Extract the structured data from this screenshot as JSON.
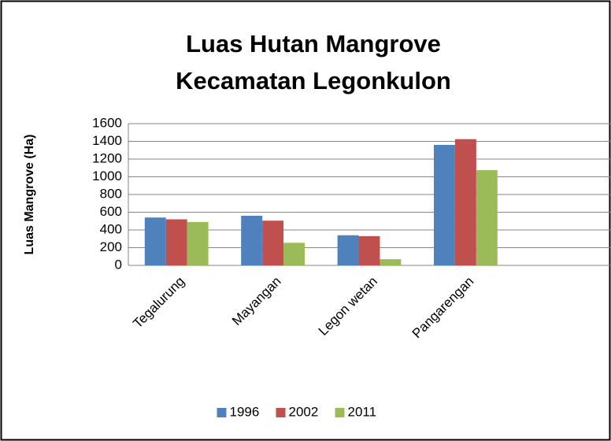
{
  "chart_data": {
    "type": "bar",
    "title": [
      "Luas Hutan Mangrove",
      "Kecamatan Legonkulon"
    ],
    "y_label": "Luas Mangrove (Ha)",
    "categories": [
      "Tegalurung",
      "Mayangan",
      "Legon wetan",
      "Pangarengan",
      null
    ],
    "series": [
      {
        "name": "1996",
        "color": "#4f81bd",
        "values": [
          540,
          560,
          340,
          1360,
          null
        ]
      },
      {
        "name": "2002",
        "color": "#c0504d",
        "values": [
          520,
          505,
          330,
          1425,
          null
        ]
      },
      {
        "name": "2011",
        "color": "#9bbb59",
        "values": [
          490,
          255,
          70,
          1075,
          null
        ]
      }
    ],
    "ylim": [
      0,
      1600
    ],
    "yticks": [
      0,
      200,
      400,
      600,
      800,
      1000,
      1200,
      1400,
      1600
    ],
    "grid": true,
    "legend": "bottom"
  }
}
